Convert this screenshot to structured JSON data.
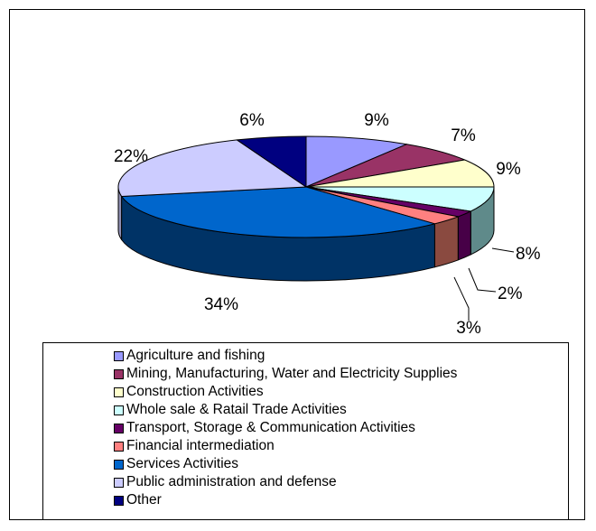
{
  "chart_data": {
    "type": "pie",
    "style": "3d-exploded-none",
    "title": "",
    "legend_position": "bottom",
    "slices": [
      {
        "name": "Agriculture and fishing",
        "value": 9,
        "label": "9%",
        "color": "#9999ff",
        "side_color": "#6b6bb3"
      },
      {
        "name": "Mining, Manufacturing, Water and Electricity Supplies",
        "value": 7,
        "label": "7%",
        "color": "#993366",
        "side_color": "#6b2447"
      },
      {
        "name": "Construction Activities",
        "value": 9,
        "label": "9%",
        "color": "#ffffcc",
        "side_color": "#b3b38f"
      },
      {
        "name": "Whole sale & Ratail Trade Activities",
        "value": 8,
        "label": "8%",
        "color": "#ccffff",
        "side_color": "#5f8a8a"
      },
      {
        "name": "Transport, Storage & Communication Activities",
        "value": 2,
        "label": "2%",
        "color": "#660066",
        "side_color": "#470047"
      },
      {
        "name": "Financial intermediation",
        "value": 3,
        "label": "3%",
        "color": "#ff8080",
        "side_color": "#8a4a40"
      },
      {
        "name": "Services Activities",
        "value": 34,
        "label": "34%",
        "color": "#0066cc",
        "side_color": "#003366"
      },
      {
        "name": "Public administration and defense",
        "value": 22,
        "label": "22%",
        "color": "#ccccff",
        "side_color": "#8f8fb3"
      },
      {
        "name": "Other",
        "value": 6,
        "label": "6%",
        "color": "#000080",
        "side_color": "#00005a"
      }
    ]
  }
}
